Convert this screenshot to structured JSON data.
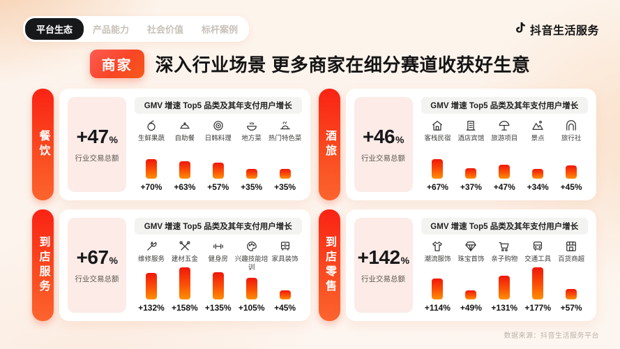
{
  "nav": {
    "tabs": [
      {
        "label": "平台生态",
        "active": true
      },
      {
        "label": "产品能力",
        "active": false
      },
      {
        "label": "社会价值",
        "active": false
      },
      {
        "label": "标杆案例",
        "active": false
      }
    ]
  },
  "brand": {
    "name": "抖音生活服务",
    "logo_icon": "douyin-note-icon"
  },
  "headline": {
    "badge": "商家",
    "title": "深入行业场景 更多商家在细分赛道收获好生意"
  },
  "footer": {
    "source": "数据来源：抖音生活服务平台"
  },
  "colors": {
    "bar_gradient_top": "#f0170a",
    "bar_gradient_bottom": "#fd9003",
    "side_tab_top": "#fa2314",
    "side_tab_bottom": "#fc642e",
    "summary_box_bg": "#fcebe7",
    "active_tab_bg": "#17181a",
    "badge_gradient": [
      "#fd5b54",
      "#f55a18"
    ]
  },
  "chart_data": [
    {
      "type": "bar",
      "industry": "餐饮",
      "industry_growth": "+47",
      "industry_growth_unit": "%",
      "industry_growth_caption": "行业交易总额",
      "chart_title": "GMV 增速 Top5 品类及其年支付用户增长",
      "categories": [
        "生鲜果蔬",
        "自助餐",
        "日韩料理",
        "地方菜",
        "热门特色菜"
      ],
      "icons": [
        "fruit-icon",
        "buffet-cloche-icon",
        "japan-korea-cuisine-icon",
        "local-dish-icon",
        "special-dish-icon"
      ],
      "values": [
        70,
        63,
        57,
        35,
        35
      ],
      "value_labels": [
        "+70%",
        "+63%",
        "+57%",
        "+35%",
        "+35%"
      ]
    },
    {
      "type": "bar",
      "industry": "酒旅",
      "industry_growth": "+46",
      "industry_growth_unit": "%",
      "industry_growth_caption": "行业交易总额",
      "chart_title": "GMV 增速 Top5 品类及其年支付用户增长",
      "categories": [
        "客栈民宿",
        "酒店宾馆",
        "旅游项目",
        "景点",
        "旅行社"
      ],
      "icons": [
        "inn-icon",
        "hotel-icon",
        "tour-umbrella-icon",
        "scenic-spot-icon",
        "travel-agency-icon"
      ],
      "values": [
        67,
        37,
        47,
        34,
        45
      ],
      "value_labels": [
        "+67%",
        "+37%",
        "+47%",
        "+34%",
        "+45%"
      ]
    },
    {
      "type": "bar",
      "industry": "到店服务",
      "industry_growth": "+67",
      "industry_growth_unit": "%",
      "industry_growth_caption": "行业交易总额",
      "chart_title": "GMV 增速 Top5 品类及其年支付用户增长",
      "categories": [
        "维修服务",
        "建材五金",
        "健身房",
        "兴趣技能培训",
        "家具装饰"
      ],
      "icons": [
        "repair-wrench-icon",
        "hardware-tools-icon",
        "gym-dumbbell-icon",
        "training-palette-icon",
        "furniture-icon"
      ],
      "values": [
        132,
        158,
        135,
        105,
        45
      ],
      "value_labels": [
        "+132%",
        "+158%",
        "+135%",
        "+105%",
        "+45%"
      ]
    },
    {
      "type": "bar",
      "industry": "到店零售",
      "industry_growth": "+142",
      "industry_growth_unit": "%",
      "industry_growth_caption": "行业交易总额",
      "chart_title": "GMV 增速 Top5 品类及其年支付用户增长",
      "categories": [
        "潮流服饰",
        "珠宝首饰",
        "亲子购物",
        "交通工具",
        "百货商超"
      ],
      "icons": [
        "apparel-icon",
        "jewelry-icon",
        "shopping-cart-icon",
        "vehicle-icon",
        "department-store-icon"
      ],
      "values": [
        114,
        49,
        131,
        177,
        57
      ],
      "value_labels": [
        "+114%",
        "+49%",
        "+131%",
        "+177%",
        "+57%"
      ]
    }
  ]
}
